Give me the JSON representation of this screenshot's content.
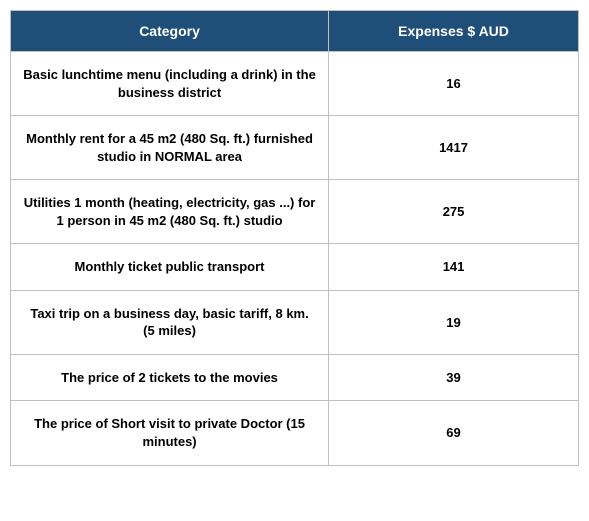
{
  "table": {
    "type": "table",
    "header_bg": "#1f4e79",
    "header_text_color": "#ffffff",
    "border_color": "#bfbfbf",
    "cell_bg": "#ffffff",
    "cell_text_color": "#000000",
    "font_family": "Segoe UI",
    "header_fontsize": 14,
    "cell_fontsize": 13,
    "cell_fontweight": 700,
    "column_widths_pct": [
      56,
      44
    ],
    "columns": [
      "Category",
      "Expenses $ AUD"
    ],
    "rows": [
      [
        "Basic lunchtime menu (including a drink) in the business district",
        "16"
      ],
      [
        "Monthly rent for a 45 m2 (480 Sq. ft.) furnished studio in NORMAL area",
        "1417"
      ],
      [
        "Utilities 1 month (heating, electricity, gas ...) for 1 person in 45 m2 (480 Sq. ft.) studio",
        "275"
      ],
      [
        "Monthly ticket public transport",
        "141"
      ],
      [
        "Taxi trip on a business day, basic tariff, 8 km. (5 miles)",
        "19"
      ],
      [
        "The price of 2 tickets to the movies",
        "39"
      ],
      [
        "The price of Short visit to private Doctor (15 minutes)",
        "69"
      ]
    ]
  }
}
